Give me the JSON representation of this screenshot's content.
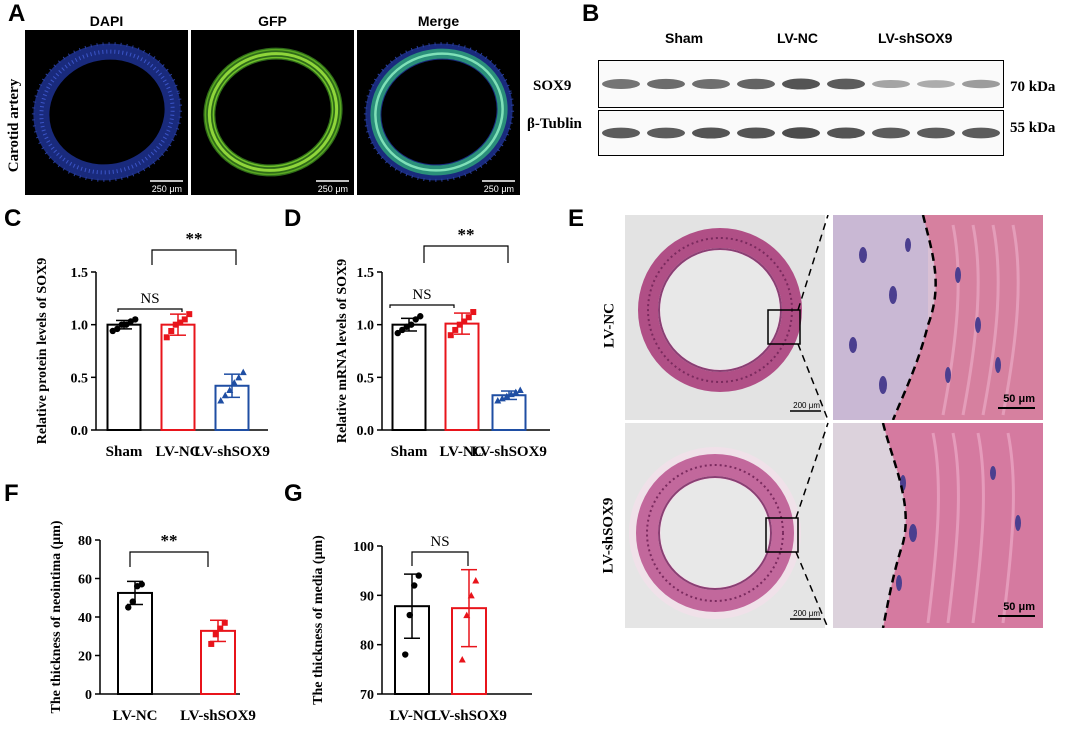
{
  "panels": {
    "A": {
      "letter": "A",
      "row_label": "Carotid artery",
      "channels": [
        "DAPI",
        "GFP",
        "Merge"
      ],
      "scale": "250 μm"
    },
    "B": {
      "letter": "B",
      "groups": [
        "Sham",
        "LV-NC",
        "LV-shSOX9"
      ],
      "bands": [
        {
          "name": "SOX9",
          "size": "70 kDa",
          "intensities": [
            0.65,
            0.7,
            0.68,
            0.75,
            0.85,
            0.8,
            0.35,
            0.3,
            0.4
          ]
        },
        {
          "name": "β-Tublin",
          "size": "55 kDa",
          "intensities": [
            0.8,
            0.8,
            0.85,
            0.85,
            0.9,
            0.85,
            0.8,
            0.8,
            0.8
          ]
        }
      ]
    },
    "C": {
      "letter": "C",
      "sig_top": "**",
      "sig_low": "NS"
    },
    "D": {
      "letter": "D",
      "sig_top": "**",
      "sig_low": "NS"
    },
    "E": {
      "letter": "E",
      "rows": [
        "LV-NC",
        "LV-shSOX9"
      ],
      "scale_low": "200 μm",
      "scale_high": "50 μm"
    },
    "F": {
      "letter": "F",
      "sig": "**"
    },
    "G": {
      "letter": "G",
      "sig": "NS"
    }
  },
  "colors": {
    "sham": "#000000",
    "lvnc": "#e8141b",
    "shsox9": "#1f4ea3"
  },
  "chart_data": [
    {
      "id": "C",
      "type": "bar",
      "categories": [
        "Sham",
        "LV-NC",
        "LV-shSOX9"
      ],
      "values": [
        1.0,
        1.0,
        0.42
      ],
      "errors": [
        0.04,
        0.1,
        0.11
      ],
      "points": [
        [
          0.94,
          0.96,
          1.0,
          1.0,
          1.03,
          1.05
        ],
        [
          0.88,
          0.94,
          1.0,
          1.02,
          1.05,
          1.1
        ],
        [
          0.28,
          0.33,
          0.38,
          0.45,
          0.5,
          0.55
        ]
      ],
      "ylabel": "Relative protein levels of SOX9",
      "ylim": [
        0,
        1.5
      ],
      "yticks": [
        "0.0",
        "0.5",
        "1.0",
        "1.5"
      ]
    },
    {
      "id": "D",
      "type": "bar",
      "categories": [
        "Sham",
        "LV-NC",
        "LV-shSOX9"
      ],
      "values": [
        1.0,
        1.01,
        0.33
      ],
      "errors": [
        0.06,
        0.1,
        0.04
      ],
      "points": [
        [
          0.92,
          0.95,
          0.98,
          1.0,
          1.05,
          1.08
        ],
        [
          0.9,
          0.95,
          1.0,
          1.03,
          1.07,
          1.12
        ],
        [
          0.28,
          0.3,
          0.32,
          0.34,
          0.36,
          0.38
        ]
      ],
      "ylabel": "Relative mRNA levels of SOX9",
      "ylim": [
        0,
        1.5
      ],
      "yticks": [
        "0.0",
        "0.5",
        "1.0",
        "1.5"
      ]
    },
    {
      "id": "F",
      "type": "bar",
      "categories": [
        "LV-NC",
        "LV-shSOX9"
      ],
      "values": [
        52.5,
        32.8
      ],
      "errors": [
        6.0,
        5.5
      ],
      "points": [
        [
          45,
          48,
          56,
          57
        ],
        [
          26,
          31,
          34,
          37
        ]
      ],
      "ylabel": "The thickness of neointima (μm)",
      "ylim": [
        0,
        80
      ],
      "yticks": [
        "0",
        "20",
        "40",
        "60",
        "80"
      ]
    },
    {
      "id": "G",
      "type": "bar",
      "categories": [
        "LV-NC",
        "LV-shSOX9"
      ],
      "values": [
        87.8,
        87.4
      ],
      "errors": [
        6.5,
        7.8
      ],
      "points": [
        [
          78,
          86,
          92,
          94
        ],
        [
          77,
          86,
          90,
          93
        ]
      ],
      "ylabel": "The thickness of media (μm)",
      "ylim": [
        70,
        100
      ],
      "yticks": [
        "70",
        "80",
        "90",
        "100"
      ]
    }
  ]
}
